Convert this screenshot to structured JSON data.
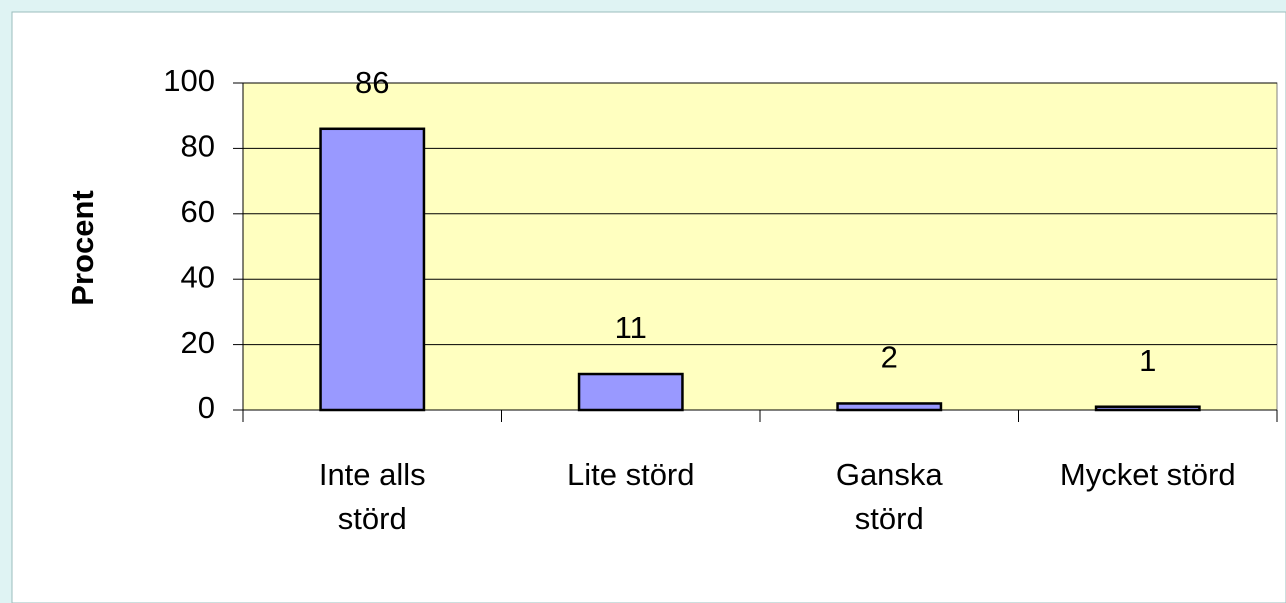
{
  "chart_data": {
    "type": "bar",
    "ylabel": "Procent",
    "categories": [
      "Inte alls\nstörd",
      "Lite störd",
      "Ganska\nstörd",
      "Mycket störd"
    ],
    "values": [
      86,
      11,
      2,
      1
    ],
    "color": "#9999ff",
    "plot_background": "#ffffc0",
    "ylim": [
      0,
      100
    ],
    "yticks": [
      0,
      20,
      40,
      60,
      80,
      100
    ],
    "grid": true
  }
}
